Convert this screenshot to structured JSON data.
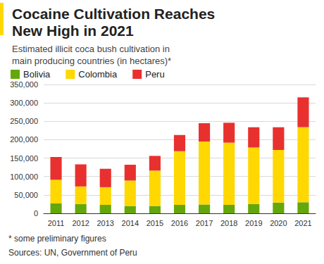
{
  "chart_data": {
    "type": "bar",
    "title": "Cocaine Cultivation Reaches New High in 2021",
    "subtitle": "Estimated illicit coca bush cultivation in main producing countries (in hectares)*",
    "notes": [
      "* some preliminary figures",
      "Sources: UN, Government of Peru"
    ],
    "categories": [
      "2011",
      "2012",
      "2013",
      "2014",
      "2015",
      "2016",
      "2017",
      "2018",
      "2019",
      "2020",
      "2021"
    ],
    "series": [
      {
        "name": "Bolivia",
        "color": "#64a70b",
        "values": [
          27000,
          25000,
          23000,
          20000,
          20000,
          23000,
          24000,
          23000,
          25000,
          29000,
          30000
        ]
      },
      {
        "name": "Colombia",
        "color": "#fed800",
        "values": [
          64000,
          48000,
          48000,
          69000,
          96000,
          146000,
          171000,
          169000,
          154000,
          143000,
          204000
        ]
      },
      {
        "name": "Peru",
        "color": "#e8312f",
        "values": [
          62000,
          60000,
          50000,
          43000,
          40000,
          44000,
          50000,
          54000,
          55000,
          62000,
          81000
        ]
      }
    ],
    "stacked": true,
    "legend": "top",
    "grid": true,
    "ylim": [
      0,
      350000
    ],
    "yticks": [
      0,
      {
        "value": 50000,
        "label": "50,000"
      },
      {
        "value": 100000,
        "label": "100,000"
      },
      {
        "value": 150000,
        "label": "150,000"
      },
      {
        "value": 200000,
        "label": "200,000"
      },
      {
        "value": 250000,
        "label": "250,000"
      },
      {
        "value": 300000,
        "label": "300,000"
      },
      {
        "value": 350000,
        "label": "350,000"
      }
    ]
  }
}
